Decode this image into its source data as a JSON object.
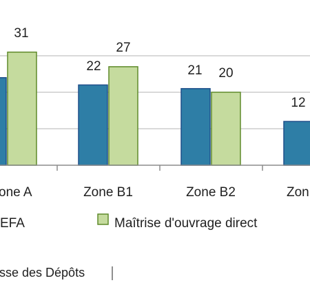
{
  "chart_data": {
    "type": "bar",
    "categories": [
      "Zone A",
      "Zone B1",
      "Zone B2",
      "Zone C"
    ],
    "categories_visible": [
      "one A",
      "Zone B1",
      "Zone B2",
      "Zon"
    ],
    "series": [
      {
        "name": "EFA",
        "values": [
          24,
          22,
          21,
          12
        ],
        "values_labels": [
          "",
          "22",
          "21",
          "12"
        ],
        "color": "#2e7ea6",
        "stroke": "#1f4f8a"
      },
      {
        "name": "Maîtrise d'ouvrage direct",
        "values": [
          31,
          27,
          20,
          null
        ],
        "values_labels": [
          "31",
          "27",
          "20",
          ""
        ],
        "color": "#c5db9e",
        "stroke": "#5f8a2a"
      }
    ],
    "legend_visible": [
      "EFA",
      "Maîtrise d'ouvrage direct"
    ],
    "source_visible": "sse des Dépôts",
    "ylim": [
      0,
      35
    ],
    "grid": true,
    "legend_placement": "bottom"
  }
}
